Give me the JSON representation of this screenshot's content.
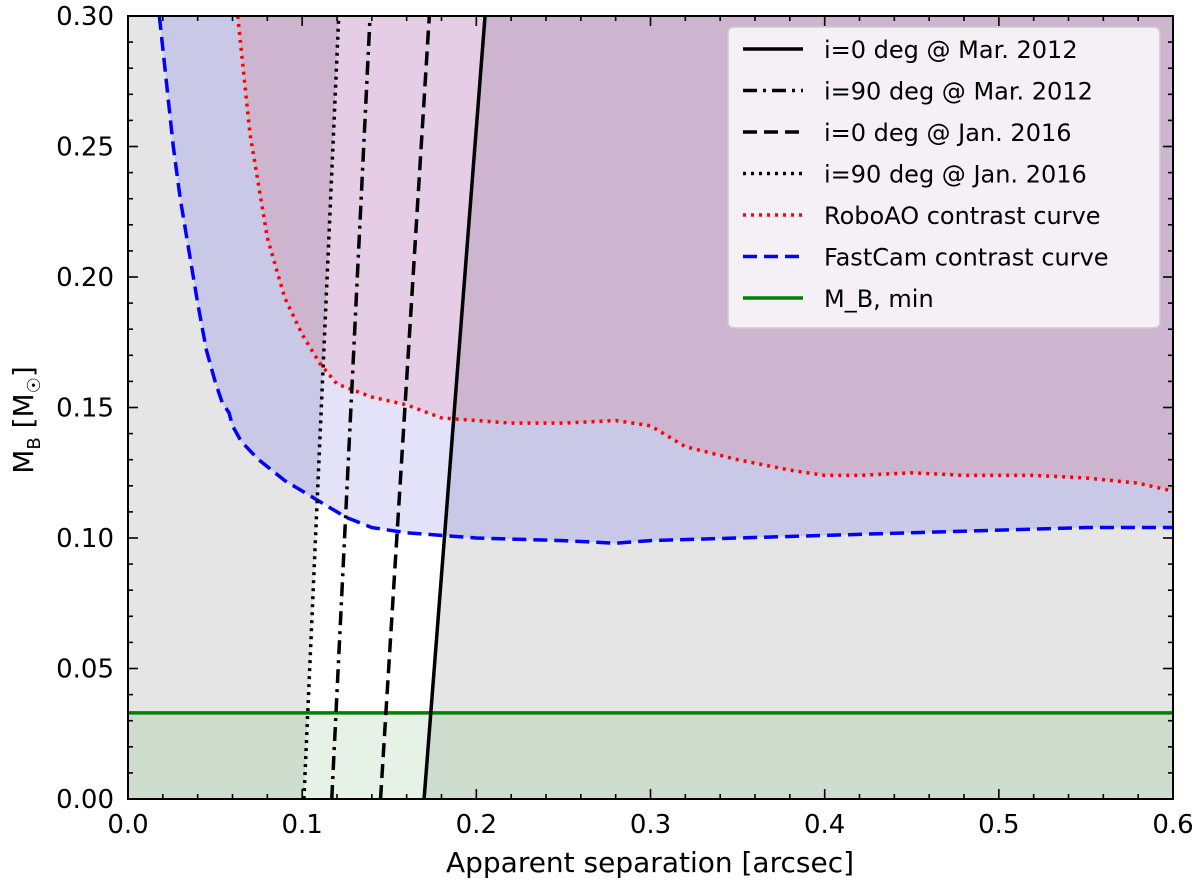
{
  "chart_data": {
    "type": "line",
    "xlabel": "Apparent separation [arcsec]",
    "ylabel": "M_B [M_☉]",
    "xlim": [
      0.0,
      0.6
    ],
    "ylim": [
      0.0,
      0.3
    ],
    "x_ticks": [
      "0.0",
      "0.1",
      "0.2",
      "0.3",
      "0.4",
      "0.5",
      "0.6"
    ],
    "y_ticks": [
      "0.00",
      "0.05",
      "0.10",
      "0.15",
      "0.20",
      "0.25",
      "0.30"
    ],
    "grid": false,
    "legend_position": "top-right",
    "series": [
      {
        "name": "i=0 deg @ Mar. 2012",
        "color": "#000000",
        "style": "solid",
        "x": [
          0.17,
          0.205
        ],
        "y": [
          0.0,
          0.3
        ]
      },
      {
        "name": "i=90 deg @ Mar. 2012",
        "color": "#000000",
        "style": "dashdot",
        "x": [
          0.117,
          0.139
        ],
        "y": [
          0.0,
          0.3
        ]
      },
      {
        "name": "i=0 deg @ Jan. 2016",
        "color": "#000000",
        "style": "dashed",
        "x": [
          0.145,
          0.173
        ],
        "y": [
          0.0,
          0.3
        ]
      },
      {
        "name": "i=90 deg @ Jan. 2016",
        "color": "#000000",
        "style": "dotted",
        "x": [
          0.101,
          0.121
        ],
        "y": [
          0.0,
          0.3
        ]
      },
      {
        "name": "RoboAO contrast curve",
        "color": "#ff0000",
        "style": "dotted",
        "x": [
          0.063,
          0.07,
          0.08,
          0.09,
          0.1,
          0.11,
          0.12,
          0.14,
          0.16,
          0.18,
          0.2,
          0.22,
          0.25,
          0.28,
          0.3,
          0.32,
          0.35,
          0.38,
          0.4,
          0.42,
          0.45,
          0.48,
          0.5,
          0.52,
          0.55,
          0.58,
          0.6
        ],
        "y": [
          0.3,
          0.255,
          0.215,
          0.192,
          0.178,
          0.167,
          0.159,
          0.154,
          0.151,
          0.146,
          0.145,
          0.144,
          0.144,
          0.145,
          0.143,
          0.135,
          0.13,
          0.126,
          0.124,
          0.124,
          0.125,
          0.124,
          0.124,
          0.124,
          0.123,
          0.121,
          0.118
        ]
      },
      {
        "name": "FastCam contrast curve",
        "color": "#0000ff",
        "style": "dashed",
        "x": [
          0.018,
          0.022,
          0.026,
          0.03,
          0.035,
          0.04,
          0.045,
          0.05,
          0.054,
          0.058,
          0.06,
          0.065,
          0.075,
          0.09,
          0.1,
          0.11,
          0.125,
          0.14,
          0.16,
          0.2,
          0.25,
          0.28,
          0.3,
          0.35,
          0.4,
          0.45,
          0.5,
          0.55,
          0.6
        ],
        "y": [
          0.3,
          0.275,
          0.25,
          0.23,
          0.21,
          0.19,
          0.172,
          0.16,
          0.152,
          0.148,
          0.143,
          0.137,
          0.13,
          0.122,
          0.118,
          0.114,
          0.108,
          0.104,
          0.102,
          0.1,
          0.099,
          0.098,
          0.099,
          0.1,
          0.101,
          0.102,
          0.103,
          0.104,
          0.104
        ]
      },
      {
        "name": "M_B,min",
        "color": "#008000",
        "style": "solid",
        "x": [
          0.0,
          0.6
        ],
        "y": [
          0.033,
          0.033
        ]
      }
    ],
    "colors": {
      "background_gray": "#e5e5e5",
      "red_region": "#cdb4cf",
      "blue_region": "#c9c8e6",
      "pink_gap": "#e6cde6",
      "lavender_gap": "#e4e2f8",
      "green_region": "#cfddcf",
      "green_gap": "#e7f2e7"
    }
  },
  "legend": {
    "items": [
      {
        "label": "i=0 deg @ Mar. 2012",
        "color": "#000000",
        "style": "solid"
      },
      {
        "label": "i=90 deg @ Mar. 2012",
        "color": "#000000",
        "style": "dashdot"
      },
      {
        "label": "i=0 deg @ Jan. 2016",
        "color": "#000000",
        "style": "dashed"
      },
      {
        "label": "i=90 deg @ Jan. 2016",
        "color": "#000000",
        "style": "dotted"
      },
      {
        "label": "RoboAO contrast curve",
        "color": "#ff0000",
        "style": "dotted"
      },
      {
        "label": "FastCam contrast curve",
        "color": "#0000ff",
        "style": "dashed"
      },
      {
        "label": "M_B, min",
        "color": "#008000",
        "style": "solid"
      }
    ]
  }
}
